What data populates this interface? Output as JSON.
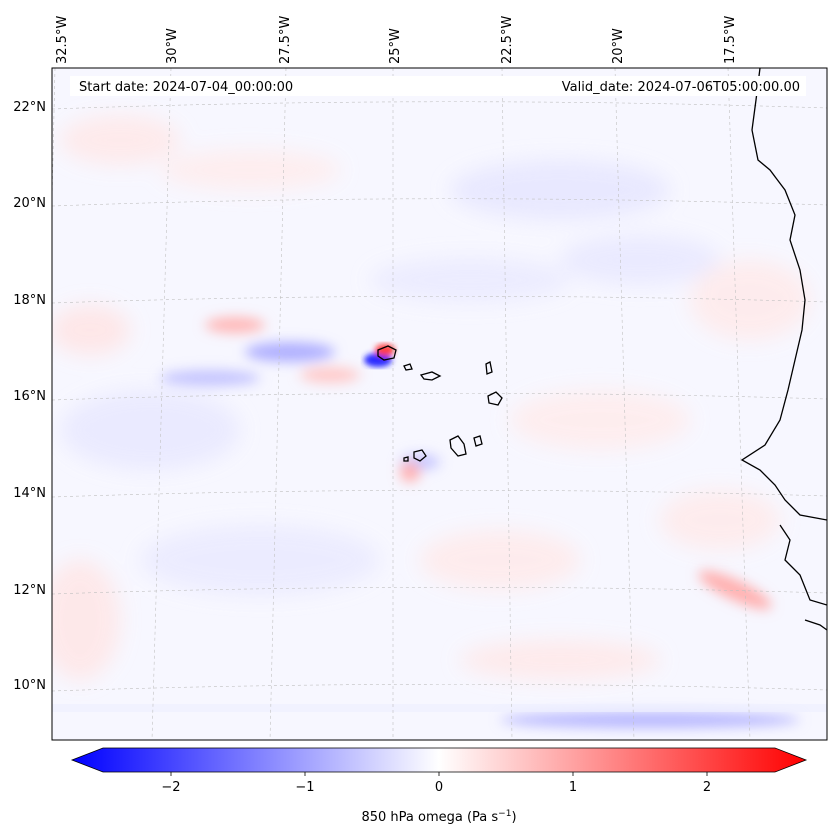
{
  "map": {
    "start_label": "Start date: 2024-07-04_00:00:00",
    "valid_label": "Valid_date: 2024-07-06T05:00:00.00",
    "lon_labels": [
      "32.5°W",
      "30°W",
      "27.5°W",
      "25°W",
      "22.5°W",
      "20°W",
      "17.5°W"
    ],
    "lat_labels": [
      "22°N",
      "20°N",
      "18°N",
      "16°N",
      "14°N",
      "12°N",
      "10°N"
    ],
    "gridlines": "dashed grey"
  },
  "colorbar": {
    "label": "850 hPa omega (Pa s",
    "label_sup": "−1",
    "label_close": ")",
    "tick_labels": [
      "−2",
      "−1",
      "0",
      "1",
      "2"
    ],
    "range": [
      -2.6,
      2.6
    ],
    "colormap": "bwr",
    "extend": "both"
  },
  "colors": {
    "negative": "#0000ff",
    "neutral": "#ffffff",
    "positive": "#ff0000",
    "coast": "#000000",
    "grid": "#b0b0b0"
  }
}
